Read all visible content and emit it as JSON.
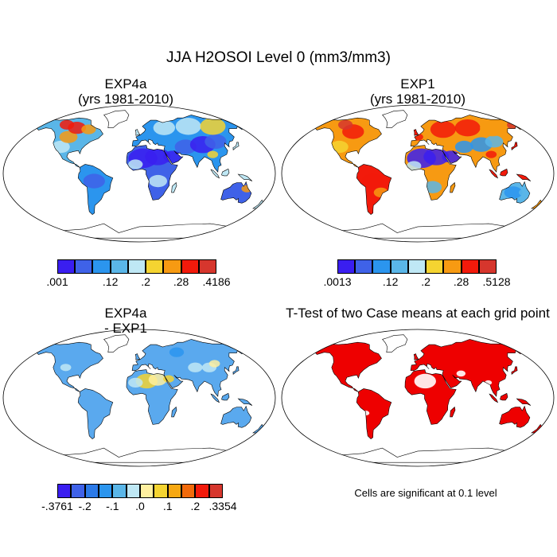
{
  "figure": {
    "title": "JJA H2OSOI Level 0 (mm3/mm3)"
  },
  "panels": [
    {
      "id": "exp4a",
      "title_lines": [
        "EXP4a",
        "(yrs 1981-2010)"
      ],
      "field": "absolute_a"
    },
    {
      "id": "exp1",
      "title_lines": [
        "EXP1",
        "(yrs 1981-2010)"
      ],
      "field": "absolute_b"
    },
    {
      "id": "diff",
      "title_lines": [
        "EXP4a",
        "- EXP1"
      ],
      "field": "difference"
    },
    {
      "id": "ttest",
      "title_lines": [
        "T-Test of two Case means at each grid point"
      ],
      "field": "significance",
      "note": "Cells are significant at 0.1 level"
    }
  ],
  "colorbars": {
    "exp4a": {
      "colors": [
        "#3a1ef0",
        "#3f62e8",
        "#2b95ee",
        "#5ab6e8",
        "#bfe8f5",
        "#f5d431",
        "#f79a12",
        "#f21a0b",
        "#d6362d"
      ],
      "labels": [
        ".001",
        ".12",
        ".2",
        ".28",
        ".4186"
      ],
      "label_boundaries": [
        0,
        3,
        5,
        7,
        9
      ]
    },
    "exp1": {
      "colors": [
        "#3a1ef0",
        "#3f62e8",
        "#2b95ee",
        "#5ab6e8",
        "#bfe8f5",
        "#f5d431",
        "#f79a12",
        "#f21a0b",
        "#d6362d"
      ],
      "labels": [
        ".0013",
        ".12",
        ".2",
        ".28",
        ".5128"
      ],
      "label_boundaries": [
        0,
        3,
        5,
        7,
        9
      ]
    },
    "diff": {
      "colors": [
        "#3a1ef0",
        "#3f62e8",
        "#2b7ae8",
        "#2b95ee",
        "#5ab6e8",
        "#bfe8f5",
        "#fff0a0",
        "#f5d431",
        "#f7a812",
        "#f26a0b",
        "#f21a0b",
        "#d6362d"
      ],
      "labels": [
        "-.3761",
        "-.2",
        "-.1",
        ".0",
        ".1",
        ".2",
        ".3354"
      ],
      "label_boundaries": [
        0,
        2,
        4,
        6,
        8,
        10,
        12
      ]
    }
  },
  "colors": {
    "land_significant": "#ee0000",
    "diff_base": "#5aa9ee",
    "sahara_diff": "#f5e58a"
  }
}
